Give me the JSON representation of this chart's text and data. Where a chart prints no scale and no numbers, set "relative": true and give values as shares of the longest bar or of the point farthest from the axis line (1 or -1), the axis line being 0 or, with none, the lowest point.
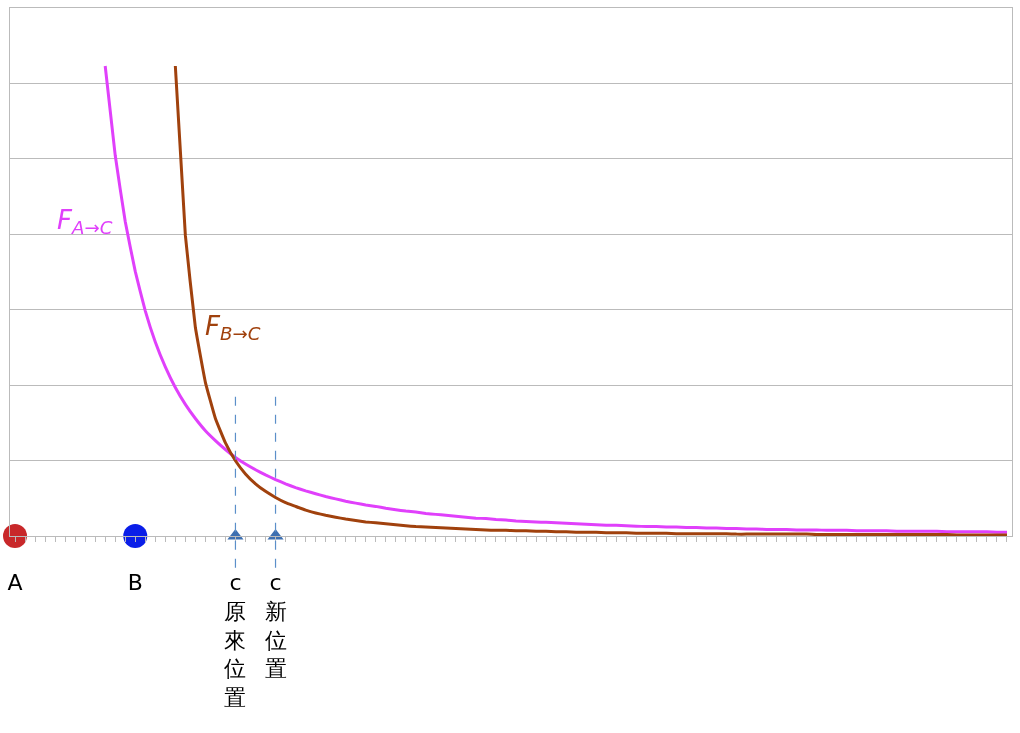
{
  "chart_data": {
    "type": "line",
    "relative": true,
    "grid": "y",
    "legend": false,
    "categories": [
      "A",
      null,
      null,
      null,
      null,
      null,
      null,
      null,
      null,
      null,
      null,
      null,
      "B",
      null,
      null,
      null,
      null,
      null,
      null,
      null,
      null,
      null,
      "c 原來位置",
      null,
      null,
      null,
      "c 新位置",
      null,
      null,
      null,
      null,
      null,
      null,
      null,
      null,
      null,
      null,
      null,
      null,
      null,
      null,
      null,
      null,
      null,
      null,
      null,
      null,
      null,
      null,
      null,
      null,
      null,
      null,
      null,
      null,
      null,
      null,
      null,
      null,
      null,
      null,
      null,
      null,
      null,
      null,
      null,
      null,
      null,
      null,
      null,
      null,
      null,
      null,
      null,
      null,
      null,
      null,
      null,
      null,
      null,
      null,
      null,
      null,
      null,
      null,
      null,
      null,
      null,
      null,
      null,
      null,
      null,
      null,
      null,
      null,
      null,
      null,
      null,
      null,
      null
    ],
    "series": [
      {
        "name": "F$_{A→C}$",
        "color": "#e040fb",
        "marker": "none",
        "values": [
          null,
          null,
          null,
          null,
          null,
          null,
          null,
          null,
          null,
          1.0,
          0.81,
          0.669,
          0.563,
          0.479,
          0.413,
          0.36,
          0.316,
          0.28,
          0.25,
          0.224,
          0.203,
          0.184,
          0.167,
          0.153,
          0.141,
          0.13,
          0.12,
          0.111,
          0.103,
          0.096,
          0.09,
          0.084,
          0.079,
          0.074,
          0.07,
          0.066,
          0.063,
          0.059,
          0.056,
          0.053,
          0.051,
          0.048,
          0.046,
          0.044,
          0.042,
          0.04,
          0.038,
          0.037,
          0.035,
          0.034,
          0.032,
          0.031,
          0.03,
          0.029,
          0.028,
          0.027,
          0.026,
          0.025,
          0.024,
          0.023,
          0.023,
          0.022,
          0.021,
          0.02,
          0.02,
          0.019,
          0.019,
          0.018,
          0.018,
          0.017,
          0.017,
          0.016,
          0.016,
          0.015,
          0.015,
          0.014,
          0.014,
          0.014,
          0.013,
          0.013,
          0.013,
          0.012,
          0.012,
          0.012,
          0.011,
          0.011,
          0.011,
          0.011,
          0.01,
          0.01,
          0.01,
          0.01,
          0.01,
          0.009,
          0.009,
          0.009,
          0.009,
          0.009,
          0.008,
          0.008
        ]
      },
      {
        "name": "F$_{B→C}$",
        "color": "#a0410d",
        "marker": "none",
        "values": [
          null,
          null,
          null,
          null,
          null,
          null,
          null,
          null,
          null,
          null,
          null,
          null,
          null,
          null,
          null,
          null,
          1.0,
          0.64,
          0.444,
          0.327,
          0.25,
          0.198,
          0.16,
          0.132,
          0.111,
          0.095,
          0.082,
          0.071,
          0.063,
          0.055,
          0.049,
          0.044,
          0.04,
          0.036,
          0.033,
          0.03,
          0.028,
          0.026,
          0.024,
          0.022,
          0.02,
          0.019,
          0.018,
          0.017,
          0.016,
          0.015,
          0.014,
          0.013,
          0.012,
          0.012,
          0.011,
          0.011,
          0.01,
          0.01,
          0.009,
          0.009,
          0.008,
          0.008,
          0.008,
          0.007,
          0.007,
          0.007,
          0.006,
          0.006,
          0.006,
          0.006,
          0.005,
          0.005,
          0.005,
          0.005,
          0.005,
          0.005,
          0.004,
          0.004,
          0.004,
          0.004,
          0.004,
          0.004,
          0.004,
          0.004,
          0.003,
          0.003,
          0.003,
          0.003,
          0.003,
          0.003,
          0.003,
          0.003,
          0.003,
          0.003,
          0.003,
          0.003,
          0.003,
          0.003,
          0.002,
          0.002,
          0.002,
          0.002,
          0.002,
          0.002
        ]
      },
      {
        "type": "scatter",
        "marker": "circle",
        "colors": [
          "#c8282a",
          null,
          null,
          null,
          null,
          null,
          null,
          null,
          null,
          null,
          null,
          null,
          "#0a1ee8",
          null,
          null,
          null,
          null,
          null,
          null,
          null,
          null,
          null,
          null,
          null,
          null,
          null,
          null,
          null,
          null,
          null,
          null,
          null,
          null,
          null,
          null,
          null,
          null,
          null,
          null,
          null,
          null,
          null,
          null,
          null,
          null,
          null,
          null,
          null,
          null,
          null,
          null,
          null,
          null,
          null,
          null,
          null,
          null,
          null,
          null,
          null,
          null,
          null,
          null,
          null,
          null,
          null,
          null,
          null,
          null,
          null,
          null,
          null,
          null,
          null,
          null,
          null,
          null,
          null,
          null,
          null,
          null,
          null,
          null,
          null,
          null,
          null,
          null,
          null,
          null,
          null,
          null,
          null,
          null,
          null,
          null,
          null,
          null,
          null,
          null,
          null
        ],
        "values": [
          0,
          null,
          null,
          null,
          null,
          null,
          null,
          null,
          null,
          null,
          null,
          null,
          0,
          null,
          null,
          null,
          null,
          null,
          null,
          null,
          null,
          null,
          null,
          null,
          null,
          null,
          null,
          null,
          null,
          null,
          null,
          null,
          null,
          null,
          null,
          null,
          null,
          null,
          null,
          null,
          null,
          null,
          null,
          null,
          null,
          null,
          null,
          null,
          null,
          null,
          null,
          null,
          null,
          null,
          null,
          null,
          null,
          null,
          null,
          null,
          null,
          null,
          null,
          null,
          null,
          null,
          null,
          null,
          null,
          null,
          null,
          null,
          null,
          null,
          null,
          null,
          null,
          null,
          null,
          null,
          null,
          null,
          null,
          null,
          null,
          null,
          null,
          null,
          null,
          null,
          null,
          null,
          null,
          null,
          null,
          null,
          null,
          null,
          null,
          null
        ]
      },
      {
        "type": "scatter",
        "marker": "triangle",
        "color": "#3d6fb0",
        "values": [
          null,
          null,
          null,
          null,
          null,
          null,
          null,
          null,
          null,
          null,
          null,
          null,
          null,
          null,
          null,
          null,
          null,
          null,
          null,
          null,
          null,
          null,
          0,
          null,
          null,
          null,
          0,
          null,
          null,
          null,
          null,
          null,
          null,
          null,
          null,
          null,
          null,
          null,
          null,
          null,
          null,
          null,
          null,
          null,
          null,
          null,
          null,
          null,
          null,
          null,
          null,
          null,
          null,
          null,
          null,
          null,
          null,
          null,
          null,
          null,
          null,
          null,
          null,
          null,
          null,
          null,
          null,
          null,
          null,
          null,
          null,
          null,
          null,
          null,
          null,
          null,
          null,
          null,
          null,
          null,
          null,
          null,
          null,
          null,
          null,
          null,
          null,
          null,
          null,
          null,
          null,
          null,
          null,
          null,
          null,
          null,
          null,
          null,
          null,
          null
        ]
      }
    ],
    "ref_lines": [
      {
        "axis": "x",
        "value": "c 原來位置",
        "color": "#5b8fc9",
        "line_style": "dashed"
      },
      {
        "axis": "x",
        "value": "c 新位置",
        "color": "#5b8fc9",
        "line_style": "dashed"
      }
    ]
  }
}
